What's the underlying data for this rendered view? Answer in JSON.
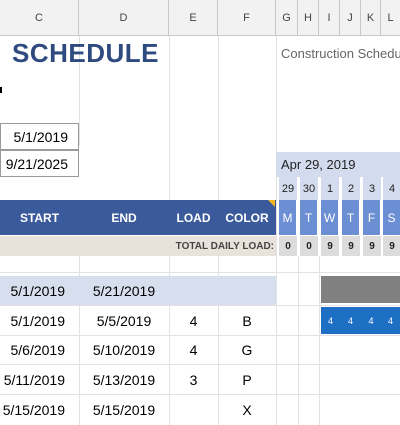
{
  "columns": [
    "C",
    "D",
    "E",
    "F",
    "G",
    "H",
    "I",
    "J",
    "K",
    "L"
  ],
  "title": "SCHEDULE",
  "subtitle": "Construction Schedu",
  "project_start": "5/1/2019",
  "display_date": "9/21/2025",
  "week_label": "Apr 29, 2019",
  "day_numbers": [
    "29",
    "30",
    "1",
    "2",
    "3",
    "4"
  ],
  "day_letters": [
    "M",
    "T",
    "W",
    "T",
    "F",
    "S"
  ],
  "headers": {
    "start": "START",
    "end": "END",
    "load": "LOAD",
    "color": "COLOR"
  },
  "total_daily_load": {
    "label": "TOTAL DAILY LOAD:",
    "values": [
      "0",
      "0",
      "9",
      "9",
      "9",
      "9"
    ]
  },
  "tasks": [
    {
      "start": "5/1/2019",
      "end": "5/21/2019",
      "load": "",
      "color": ""
    },
    {
      "start": "5/1/2019",
      "end": "5/5/2019",
      "load": "4",
      "color": "B",
      "gantt": [
        "4",
        "4",
        "4",
        "4"
      ]
    },
    {
      "start": "5/6/2019",
      "end": "5/10/2019",
      "load": "4",
      "color": "G"
    },
    {
      "start": "5/11/2019",
      "end": "5/13/2019",
      "load": "3",
      "color": "P"
    },
    {
      "start": "5/15/2019",
      "end": "5/15/2019",
      "load": "",
      "color": "X"
    }
  ]
}
